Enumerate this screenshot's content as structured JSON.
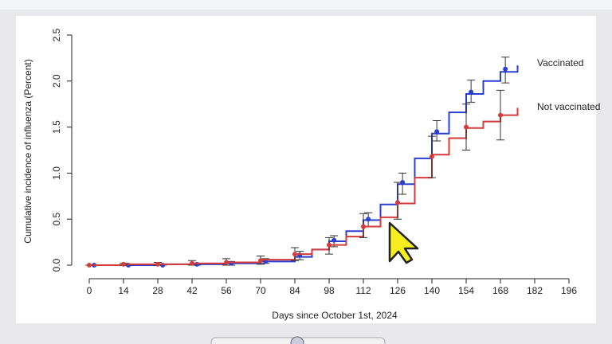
{
  "chart_data": {
    "type": "line",
    "step": true,
    "x_label": "Days since October 1st, 2024",
    "y_label": "Cumulative incidence of influenza (Percent)",
    "xlim": [
      0,
      196
    ],
    "xticks": [
      0,
      14,
      28,
      42,
      56,
      70,
      84,
      98,
      112,
      126,
      140,
      154,
      168,
      182,
      196
    ],
    "ylim": [
      0,
      2.5
    ],
    "yticks": [
      {
        "value": 0,
        "label": "0.0"
      },
      {
        "value": 0.5,
        "label": "0.5"
      },
      {
        "value": 1,
        "label": "1.0"
      },
      {
        "value": 1.5,
        "label": "1.5"
      },
      {
        "value": 2,
        "label": "2.0"
      },
      {
        "value": 2.5,
        "label": "2.5"
      }
    ],
    "legend": "right",
    "series": [
      {
        "name": "Vaccinated",
        "color": "#2a3fd1",
        "x": [
          0,
          14,
          28,
          42,
          56,
          70,
          84,
          91,
          98,
          105,
          112,
          119,
          126,
          133,
          140,
          147,
          154,
          161,
          168,
          175
        ],
        "values": [
          0,
          0,
          0.01,
          0.01,
          0.02,
          0.04,
          0.09,
          0.17,
          0.26,
          0.37,
          0.49,
          0.66,
          0.88,
          1.16,
          1.43,
          1.66,
          1.86,
          2.0,
          2.1,
          2.17
        ],
        "markers": {
          "x": [
            2,
            16,
            30,
            44,
            58,
            72,
            86,
            100,
            114,
            128,
            142,
            156,
            170
          ],
          "values": [
            0,
            0,
            0,
            0.01,
            0.02,
            0.04,
            0.11,
            0.27,
            0.5,
            0.9,
            1.45,
            1.88,
            2.13
          ],
          "err_low": [
            0,
            0,
            0,
            0,
            0,
            0.02,
            0.06,
            0.2,
            0.42,
            0.77,
            1.35,
            1.77,
            1.98
          ],
          "err_high": [
            0,
            0,
            0.01,
            0.02,
            0.04,
            0.07,
            0.15,
            0.32,
            0.57,
            1.0,
            1.57,
            2.01,
            2.26
          ]
        }
      },
      {
        "name": "Not vaccinated",
        "color": "#d63b3b",
        "x": [
          0,
          14,
          28,
          42,
          56,
          70,
          84,
          91,
          98,
          105,
          112,
          119,
          126,
          133,
          140,
          147,
          154,
          161,
          168,
          175
        ],
        "values": [
          0,
          0.01,
          0.01,
          0.02,
          0.03,
          0.06,
          0.12,
          0.17,
          0.22,
          0.31,
          0.42,
          0.52,
          0.67,
          0.95,
          1.2,
          1.38,
          1.49,
          1.56,
          1.63,
          1.71
        ],
        "markers": {
          "x": [
            0,
            14,
            28,
            42,
            56,
            70,
            84,
            98,
            112,
            126,
            140,
            154,
            168
          ],
          "values": [
            0,
            0.01,
            0.01,
            0.02,
            0.03,
            0.05,
            0.12,
            0.22,
            0.42,
            0.68,
            1.18,
            1.5,
            1.63
          ],
          "err_low": [
            0,
            0,
            0,
            0,
            0,
            0.01,
            0.05,
            0.12,
            0.3,
            0.5,
            0.95,
            1.25,
            1.36
          ],
          "err_high": [
            0,
            0.02,
            0.03,
            0.05,
            0.07,
            0.1,
            0.19,
            0.3,
            0.56,
            0.9,
            1.4,
            1.75,
            1.9
          ]
        }
      }
    ]
  }
}
